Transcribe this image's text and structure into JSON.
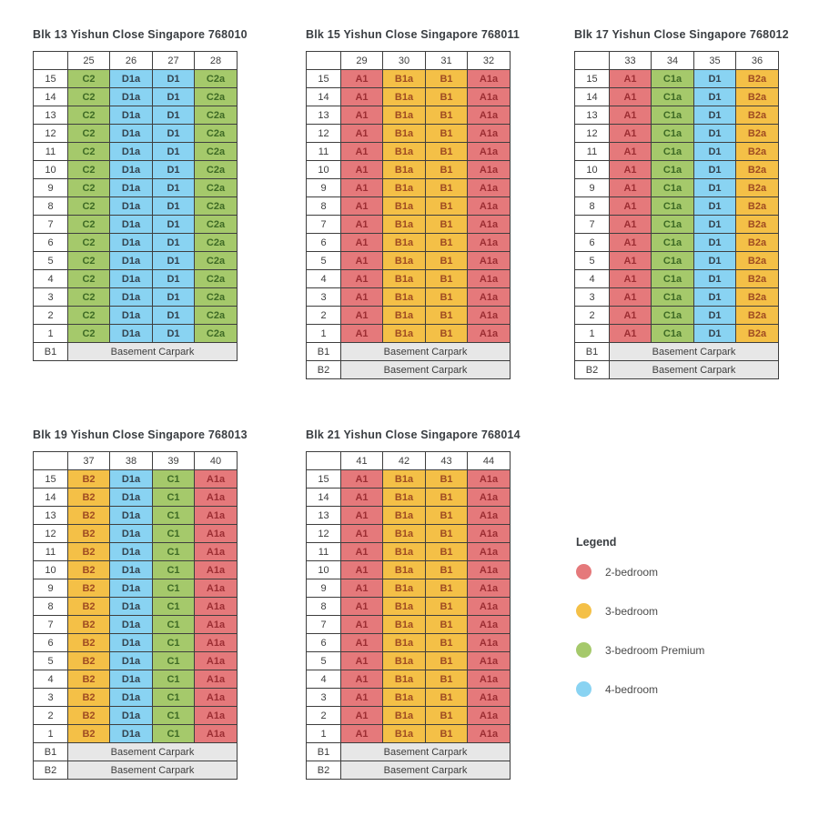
{
  "page": {
    "background": "#ffffff",
    "table_border_color": "#3e3e3e",
    "basement_fill": "#e7e7e7"
  },
  "floors": [
    "15",
    "14",
    "13",
    "12",
    "11",
    "10",
    "9",
    "8",
    "7",
    "6",
    "5",
    "4",
    "3",
    "2",
    "1"
  ],
  "unit_types": {
    "A1": "2-bedroom",
    "A1a": "2-bedroom",
    "B1": "3-bedroom",
    "B1a": "3-bedroom",
    "B2": "3-bedroom",
    "B2a": "3-bedroom",
    "C1": "3-bedroom Premium",
    "C1a": "3-bedroom Premium",
    "C2": "3-bedroom Premium",
    "C2a": "3-bedroom Premium",
    "D1": "4-bedroom",
    "D1a": "4-bedroom"
  },
  "type_colors": {
    "2-bedroom": {
      "fill": "#e5797b",
      "text": "#9c2e33"
    },
    "3-bedroom": {
      "fill": "#f4c047",
      "text": "#9f4b22"
    },
    "3-bedroom Premium": {
      "fill": "#a5c96b",
      "text": "#3e6a25"
    },
    "4-bedroom": {
      "fill": "#89d3f2",
      "text": "#33424e"
    }
  },
  "blocks": [
    {
      "title": "Blk 13 Yishun Close Singapore 768010",
      "columns": [
        "25",
        "26",
        "27",
        "28"
      ],
      "unit_row": [
        "C2",
        "D1a",
        "D1",
        "C2a"
      ],
      "basements": [
        {
          "label": "B1",
          "text": "Basement Carpark"
        }
      ]
    },
    {
      "title": "Blk 15 Yishun Close Singapore 768011",
      "columns": [
        "29",
        "30",
        "31",
        "32"
      ],
      "unit_row": [
        "A1",
        "B1a",
        "B1",
        "A1a"
      ],
      "basements": [
        {
          "label": "B1",
          "text": "Basement Carpark"
        },
        {
          "label": "B2",
          "text": "Basement Carpark"
        }
      ]
    },
    {
      "title": "Blk 17 Yishun Close Singapore 768012",
      "columns": [
        "33",
        "34",
        "35",
        "36"
      ],
      "unit_row": [
        "A1",
        "C1a",
        "D1",
        "B2a"
      ],
      "basements": [
        {
          "label": "B1",
          "text": "Basement Carpark"
        },
        {
          "label": "B2",
          "text": "Basement Carpark"
        }
      ]
    },
    {
      "title": "Blk 19 Yishun Close Singapore 768013",
      "columns": [
        "37",
        "38",
        "39",
        "40"
      ],
      "unit_row": [
        "B2",
        "D1a",
        "C1",
        "A1a"
      ],
      "basements": [
        {
          "label": "B1",
          "text": "Basement Carpark"
        },
        {
          "label": "B2",
          "text": "Basement Carpark"
        }
      ]
    },
    {
      "title": "Blk 21 Yishun Close Singapore 768014",
      "columns": [
        "41",
        "42",
        "43",
        "44"
      ],
      "unit_row": [
        "A1",
        "B1a",
        "B1",
        "A1a"
      ],
      "basements": [
        {
          "label": "B1",
          "text": "Basement Carpark"
        },
        {
          "label": "B2",
          "text": "Basement Carpark"
        }
      ]
    }
  ],
  "legend": {
    "title": "Legend",
    "items": [
      {
        "label": "2-bedroom",
        "color": "#e5797b"
      },
      {
        "label": "3-bedroom",
        "color": "#f4c047"
      },
      {
        "label": "3-bedroom Premium",
        "color": "#a5c96b"
      },
      {
        "label": "4-bedroom",
        "color": "#89d3f2"
      }
    ]
  }
}
